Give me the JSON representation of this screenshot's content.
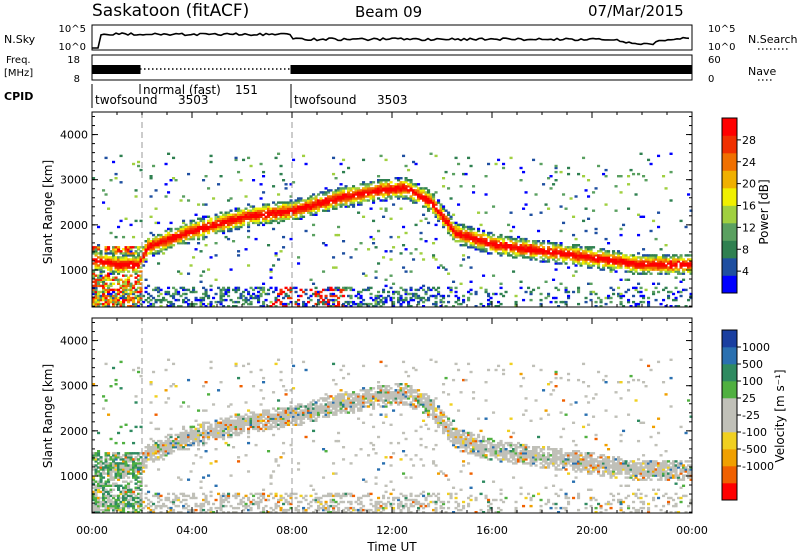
{
  "header": {
    "station": "Saskatoon (fitACF)",
    "beam": "Beam 09",
    "date": "07/Mar/2015"
  },
  "sky_panel": {
    "left_label": "N.Sky",
    "right_label": "N.Search",
    "left_ticks": [
      "10^5",
      "10^0"
    ],
    "right_ticks": [
      "10^5",
      "10^0"
    ]
  },
  "freq_panel": {
    "left_label_1": "Freq.",
    "left_label_2": "[MHz]",
    "left_ticks": [
      "18",
      "8"
    ],
    "right_label": "Nave",
    "right_ticks": [
      "60",
      "0"
    ]
  },
  "cpid_panel": {
    "label": "CPID",
    "modes": [
      {
        "name": "twofsound",
        "id": "3503"
      },
      {
        "name": "normal (fast)",
        "id": "151"
      },
      {
        "name": "twofsound",
        "id": "3503"
      }
    ]
  },
  "power_panel": {
    "ylabel": "Slant Range [km]",
    "yticks": [
      "4000",
      "3000",
      "2000",
      "1000"
    ],
    "colorbar_label": "Power [dB]",
    "colorbar_ticks": [
      "28",
      "24",
      "20",
      "16",
      "12",
      "8",
      "4"
    ],
    "colors": [
      "#0000ff",
      "#1f4fa0",
      "#2f8050",
      "#5aa060",
      "#a0d040",
      "#f0f000",
      "#f0b000",
      "#f07000",
      "#f03000",
      "#ff0000"
    ]
  },
  "velocity_panel": {
    "ylabel": "Slant Range [km]",
    "yticks": [
      "4000",
      "3000",
      "2000",
      "1000"
    ],
    "colorbar_label": "Velocity [m s⁻¹]",
    "colorbar_ticks": [
      "1000",
      "500",
      "100",
      "25",
      "-25",
      "-100",
      "-500",
      "-1000"
    ],
    "colors": [
      "#1a3fa0",
      "#2a70b0",
      "#2f8a60",
      "#50b040",
      "#c0c0b8",
      "#c0c0b8",
      "#f0d020",
      "#f0a000",
      "#f06000",
      "#ff0000"
    ]
  },
  "x_axis": {
    "ticks": [
      "00:00",
      "04:00",
      "08:00",
      "12:00",
      "16:00",
      "20:00",
      "00:00"
    ],
    "label": "Time UT"
  },
  "chart_data": {
    "type": "heatmap",
    "x_range_hours": [
      0,
      24
    ],
    "y_range_km": [
      180,
      4500
    ],
    "mode_boundaries_hours": [
      2,
      8
    ],
    "echo_band_center_km": [
      [
        0,
        1200
      ],
      [
        1,
        1100
      ],
      [
        1.8,
        1100
      ],
      [
        2.2,
        1500
      ],
      [
        4,
        1850
      ],
      [
        6,
        2150
      ],
      [
        8,
        2300
      ],
      [
        10,
        2600
      ],
      [
        11.5,
        2750
      ],
      [
        12.5,
        2800
      ],
      [
        13.5,
        2500
      ],
      [
        14.5,
        1800
      ],
      [
        16,
        1550
      ],
      [
        18,
        1400
      ],
      [
        20,
        1250
      ],
      [
        22,
        1100
      ],
      [
        24,
        1100
      ]
    ],
    "power_db_range": [
      0,
      30
    ],
    "velocity_range_ms": [
      -1000,
      1000
    ]
  }
}
